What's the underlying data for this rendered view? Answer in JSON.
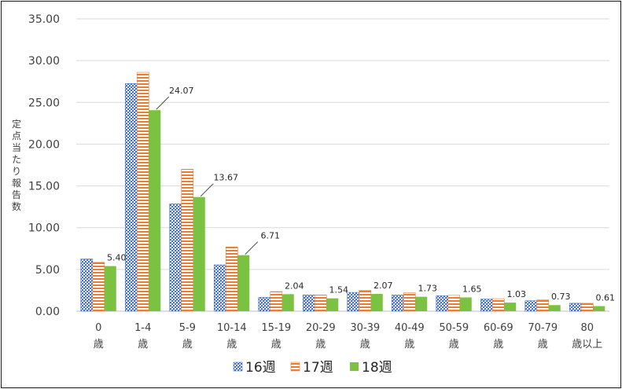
{
  "chart_data": {
    "type": "bar",
    "title": "",
    "ylabel": "定点当たり報告数",
    "xlabel": "",
    "ylim": [
      0,
      35
    ],
    "yticks": [
      "0.00",
      "5.00",
      "10.00",
      "15.00",
      "20.00",
      "25.00",
      "30.00",
      "35.00"
    ],
    "grid": true,
    "legend_position": "bottom",
    "categories": [
      [
        "0",
        "歳"
      ],
      [
        "1-4",
        "歳"
      ],
      [
        "5-9",
        "歳"
      ],
      [
        "10-14",
        "歳"
      ],
      [
        "15-19",
        "歳"
      ],
      [
        "20-29",
        "歳"
      ],
      [
        "30-39",
        "歳"
      ],
      [
        "40-49",
        "歳"
      ],
      [
        "50-59",
        "歳"
      ],
      [
        "60-69",
        "歳"
      ],
      [
        "70-79",
        "歳"
      ],
      [
        "80",
        "歳以上"
      ]
    ],
    "series": [
      {
        "name": "16週",
        "color": "#4472c4",
        "pattern": "dots",
        "values": [
          6.25,
          27.25,
          12.85,
          5.55,
          1.65,
          1.95,
          2.25,
          1.95,
          1.85,
          1.45,
          1.25,
          0.95
        ]
      },
      {
        "name": "17週",
        "color": "#ed7d31",
        "pattern": "horizontal-stripes",
        "values": [
          5.85,
          28.6,
          17.0,
          7.7,
          2.35,
          1.95,
          2.5,
          2.2,
          1.9,
          1.5,
          1.35,
          0.95
        ]
      },
      {
        "name": "18週",
        "color": "#7cc242",
        "pattern": "solid",
        "values": [
          5.4,
          24.07,
          13.67,
          6.71,
          2.04,
          1.54,
          2.07,
          1.73,
          1.65,
          1.03,
          0.73,
          0.61
        ],
        "data_labels": [
          "5.40",
          "24.07",
          "13.67",
          "6.71",
          "2.04",
          "1.54",
          "2.07",
          "1.73",
          "1.65",
          "1.03",
          "0.73",
          "0.61"
        ]
      }
    ]
  }
}
